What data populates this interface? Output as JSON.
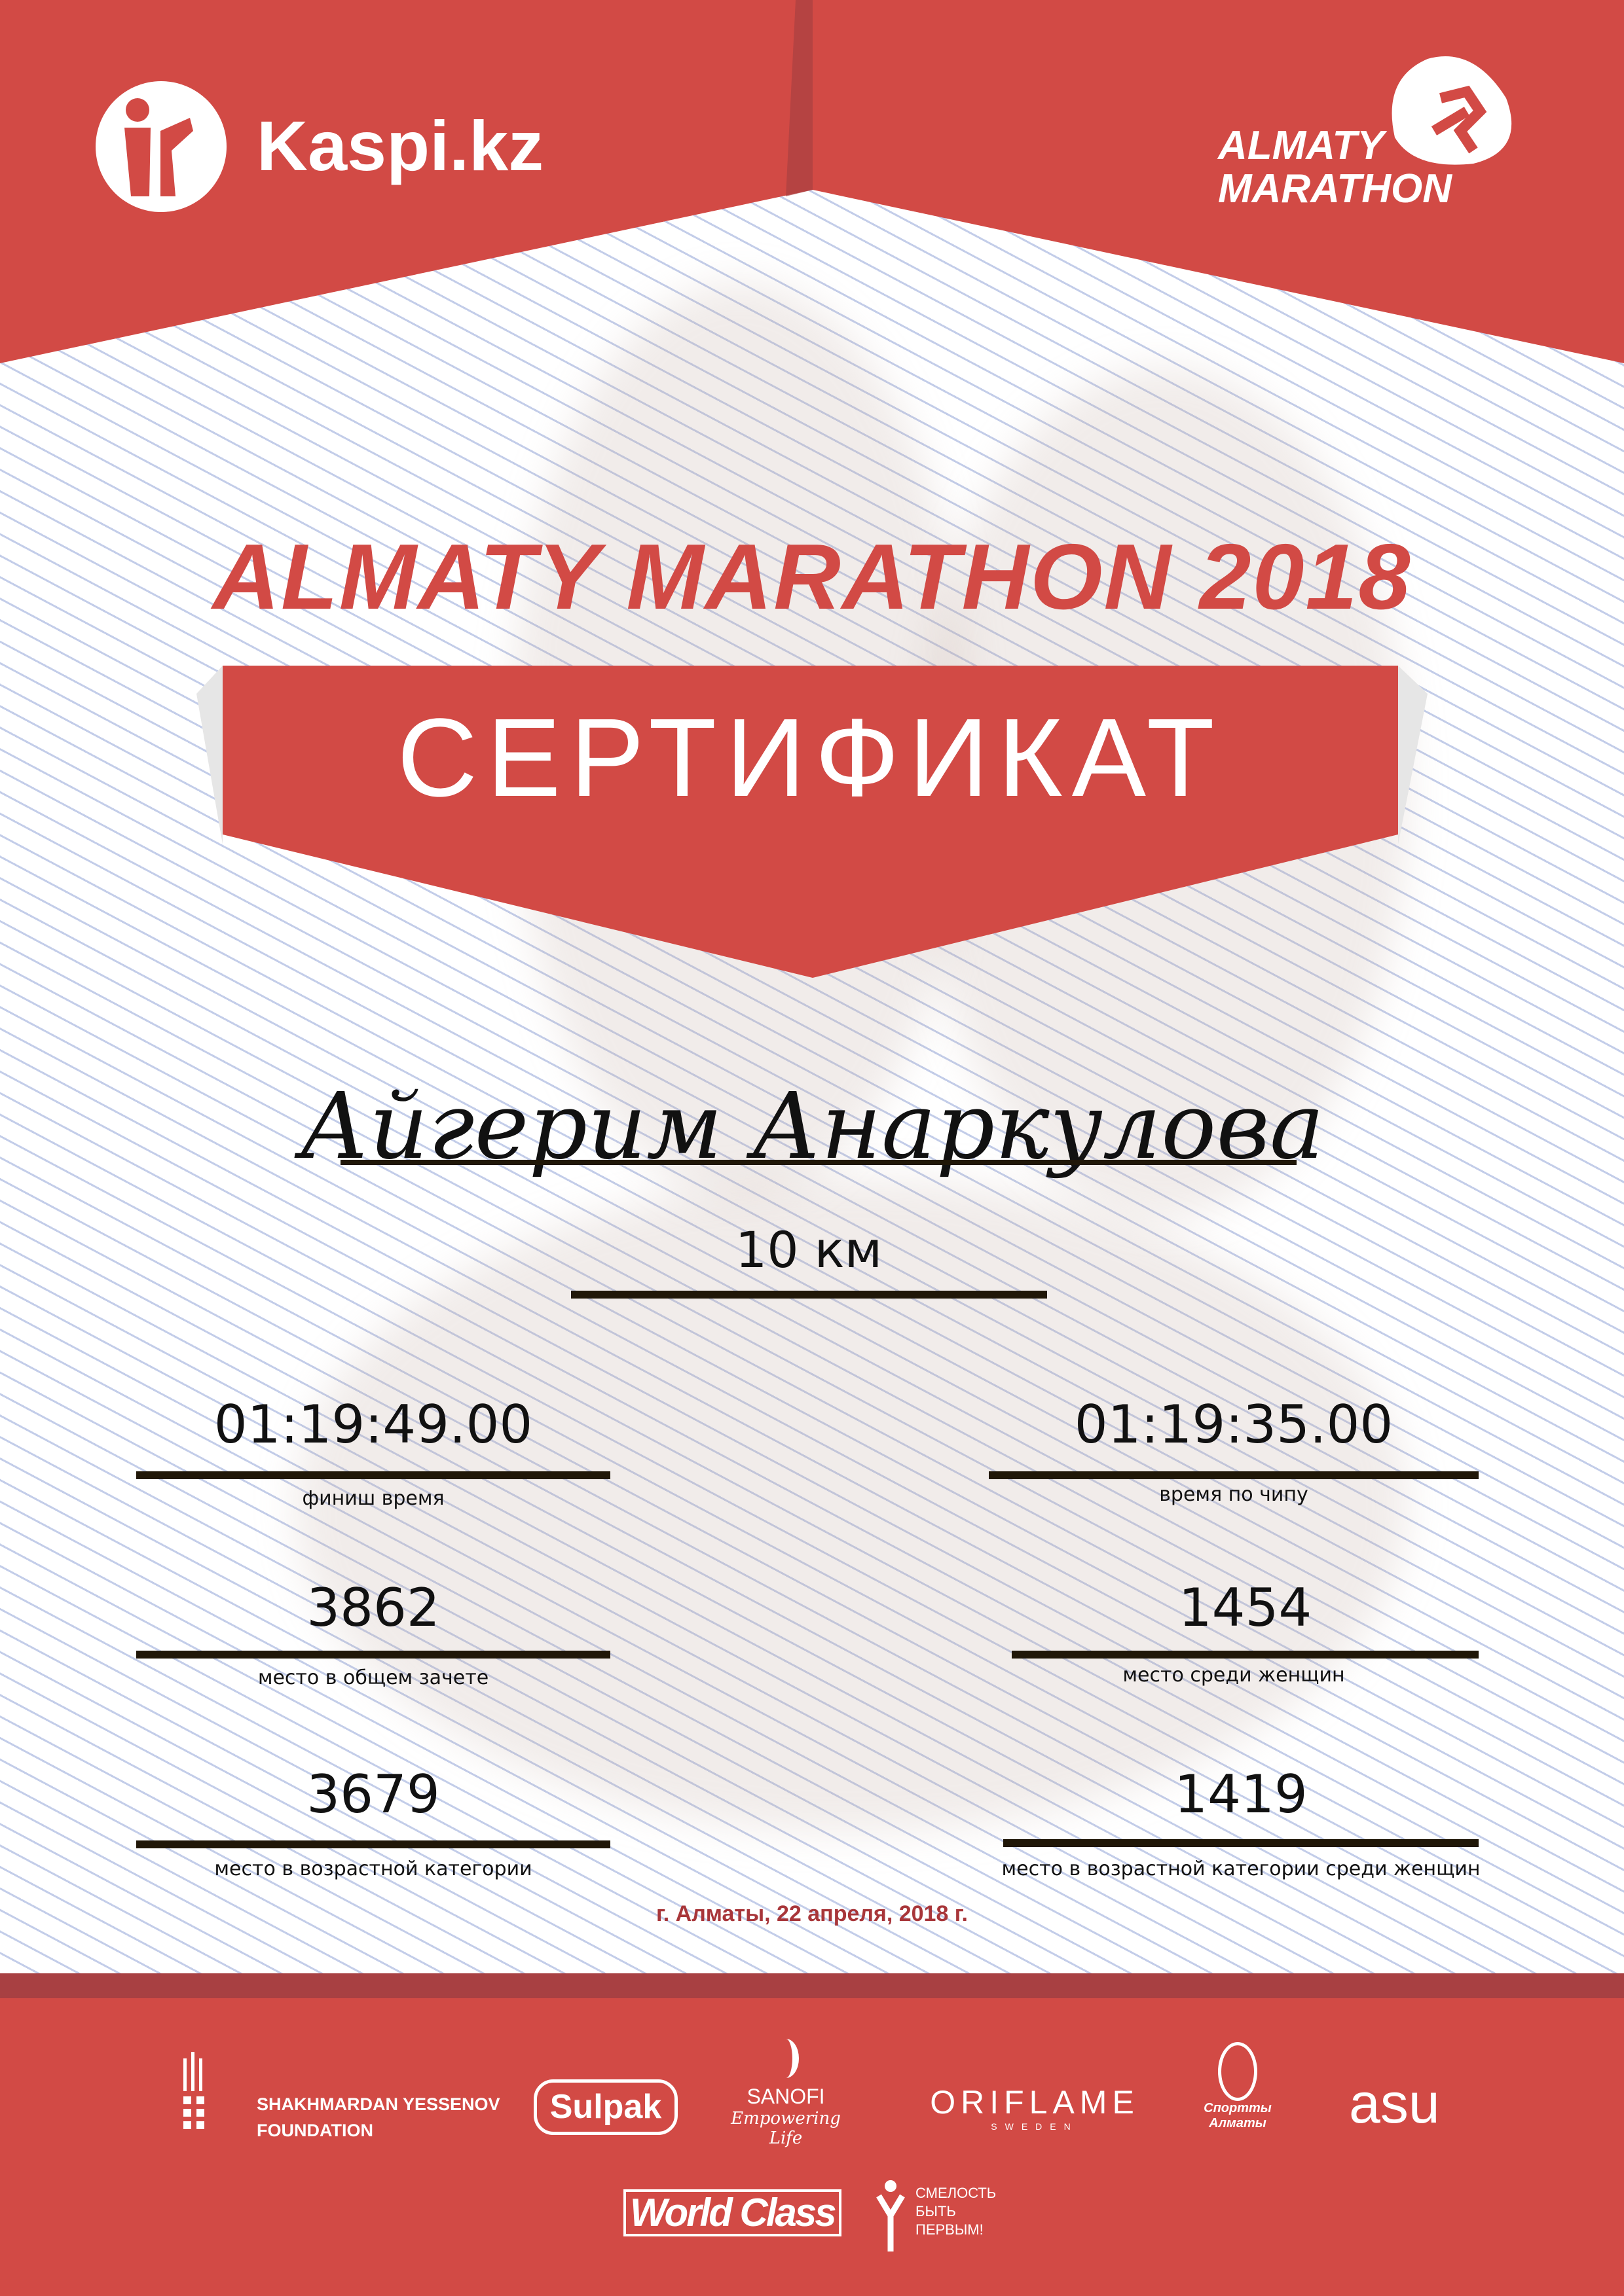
{
  "colors": {
    "brand_red": "#d24a45",
    "dark_red": "#a84042",
    "ink": "#201708",
    "date_red": "#a8363a",
    "stripe_blue": "#c3cde9"
  },
  "header": {
    "kaspi_logo": "Kaspi.kz",
    "marathon_logo": {
      "line1": "ALMATY",
      "line2": "MARATHON"
    }
  },
  "title": "ALMATY MARATHON 2018",
  "certificate_label": "СЕРТИФИКАТ",
  "participant_name": "Айгерим Анаркулова",
  "distance": "10 км",
  "results": [
    {
      "value": "01:19:49.00",
      "label": "финиш время"
    },
    {
      "value": "01:19:35.00",
      "label": "время по чипу"
    },
    {
      "value": "3862",
      "label": "место в общем зачете"
    },
    {
      "value": "1454",
      "label": "место среди женщин"
    },
    {
      "value": "3679",
      "label": "место в возрастной категории"
    },
    {
      "value": "1419",
      "label": "место в возрастной категории среди женщин"
    }
  ],
  "date": "г. Алматы, 22 апреля, 2018 г.",
  "sponsors": {
    "yessenov": {
      "line1": "SHAKHMARDAN YESSENOV",
      "line2": "FOUNDATION"
    },
    "sulpak": "Sulpak",
    "sanofi": {
      "name": "SANOFI",
      "tagline": "Empowering Life"
    },
    "oriflame": {
      "name": "ORIFLAME",
      "sub": "SWEDEN"
    },
    "sport_almaty": "Спортты Алматы",
    "asu": "asu",
    "worldclass": "World Class",
    "fund": {
      "line1": "СМЕЛОСТЬ",
      "line2": "БЫТЬ",
      "line3": "ПЕРВЫМ!"
    }
  }
}
